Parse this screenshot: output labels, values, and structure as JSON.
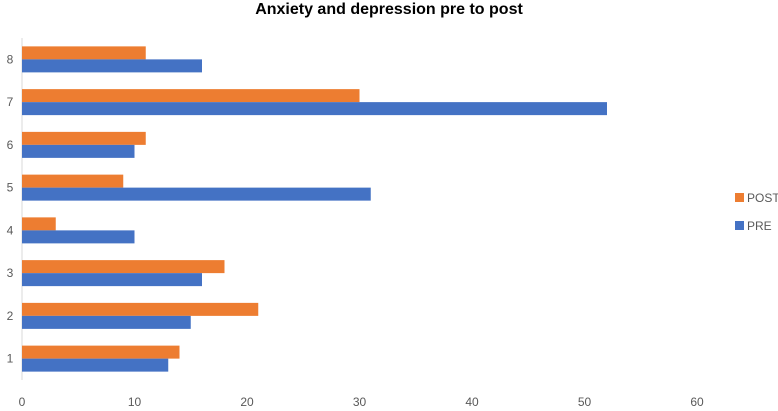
{
  "chart_data": {
    "type": "bar",
    "orientation": "horizontal",
    "title": "Anxiety and depression pre to post",
    "xlabel": "",
    "ylabel": "",
    "categories": [
      "1",
      "2",
      "3",
      "4",
      "5",
      "6",
      "7",
      "8"
    ],
    "series": [
      {
        "name": "POST",
        "color": "#ED7D31",
        "values": [
          14,
          21,
          18,
          3,
          9,
          11,
          30,
          11
        ]
      },
      {
        "name": "PRE",
        "color": "#4472C4",
        "values": [
          13,
          15,
          16,
          10,
          31,
          10,
          52,
          16
        ]
      }
    ],
    "xlim": [
      0,
      60
    ],
    "xticks": [
      "0",
      "10",
      "20",
      "30",
      "40",
      "50",
      "60"
    ],
    "grid": false,
    "legend_position": "right"
  }
}
